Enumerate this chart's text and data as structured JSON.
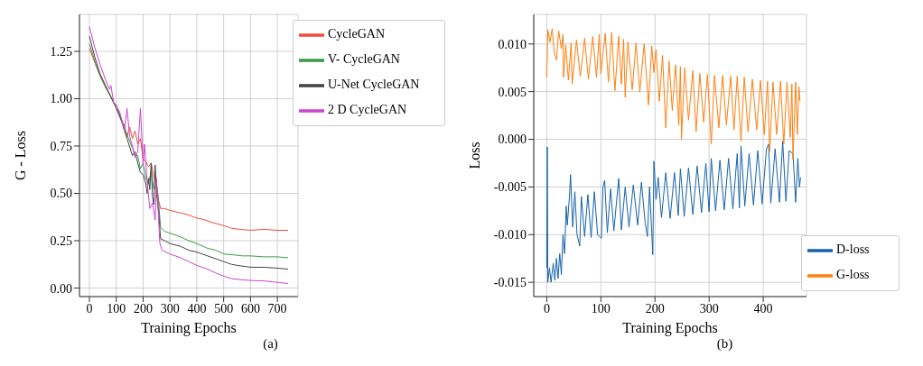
{
  "chart_data": [
    {
      "type": "line",
      "xlabel": "Training Epochs",
      "ylabel": "G - Loss",
      "annotations": [
        "(a)"
      ],
      "grid": true,
      "legend": "top right",
      "marker": "none",
      "line_style": "solid",
      "xlim": [
        -37,
        777
      ],
      "xticks": [
        0,
        100,
        200,
        300,
        400,
        500,
        600,
        700
      ],
      "ylim": [
        -0.045,
        1.445
      ],
      "yticks": [
        {
          "value": 0,
          "label": "0.00"
        },
        {
          "value": 0.25,
          "label": "0.25"
        },
        {
          "value": 0.5,
          "label": "0.50"
        },
        {
          "value": 0.75,
          "label": "0.75"
        },
        {
          "value": 1,
          "label": "1.00"
        },
        {
          "value": 1.25,
          "label": "1.25"
        }
      ],
      "series": [
        {
          "name": "CycleGAN",
          "color": "#f04a3a",
          "x": [
            0,
            20,
            40,
            60,
            80,
            100,
            110,
            120,
            130,
            140,
            150,
            160,
            170,
            180,
            190,
            200,
            210,
            220,
            230,
            240,
            250,
            258,
            265,
            280,
            300,
            330,
            360,
            400,
            430,
            460,
            500,
            530,
            560,
            600,
            650,
            700,
            740
          ],
          "values": [
            1.265,
            1.19,
            1.12,
            1.06,
            1.01,
            0.95,
            0.93,
            0.88,
            0.86,
            0.8,
            0.85,
            0.79,
            0.83,
            0.76,
            0.79,
            0.68,
            0.67,
            0.64,
            0.66,
            0.59,
            0.55,
            0.46,
            0.42,
            0.42,
            0.41,
            0.4,
            0.39,
            0.37,
            0.36,
            0.345,
            0.33,
            0.315,
            0.31,
            0.305,
            0.31,
            0.305,
            0.305
          ]
        },
        {
          "name": "V- CycleGAN",
          "color": "#3a9a4a",
          "x": [
            0,
            20,
            40,
            60,
            80,
            100,
            120,
            140,
            160,
            170,
            180,
            190,
            200,
            210,
            220,
            230,
            240,
            250,
            258,
            265,
            280,
            300,
            340,
            370,
            400,
            440,
            470,
            500,
            540,
            570,
            600,
            650,
            700,
            740
          ],
          "values": [
            1.29,
            1.2,
            1.12,
            1.06,
            1.01,
            0.95,
            0.89,
            0.81,
            0.74,
            0.7,
            0.7,
            0.63,
            0.66,
            0.58,
            0.55,
            0.62,
            0.52,
            0.55,
            0.45,
            0.32,
            0.3,
            0.29,
            0.27,
            0.25,
            0.235,
            0.21,
            0.2,
            0.18,
            0.175,
            0.17,
            0.17,
            0.165,
            0.165,
            0.16
          ]
        },
        {
          "name": "U-Net CycleGAN",
          "color": "#444444",
          "x": [
            0,
            20,
            40,
            60,
            80,
            100,
            120,
            140,
            160,
            170,
            180,
            190,
            200,
            210,
            215,
            220,
            225,
            230,
            235,
            240,
            245,
            250,
            258,
            265,
            280,
            300,
            340,
            370,
            400,
            440,
            470,
            500,
            530,
            550,
            600,
            650,
            700,
            740
          ],
          "values": [
            1.33,
            1.22,
            1.13,
            1.07,
            1.01,
            0.95,
            0.88,
            0.79,
            0.7,
            0.72,
            0.66,
            0.61,
            0.6,
            0.55,
            0.5,
            0.58,
            0.52,
            0.66,
            0.48,
            0.44,
            0.65,
            0.5,
            0.4,
            0.26,
            0.25,
            0.235,
            0.22,
            0.2,
            0.19,
            0.17,
            0.155,
            0.14,
            0.125,
            0.12,
            0.11,
            0.11,
            0.105,
            0.1
          ]
        },
        {
          "name": "2 D CycleGAN",
          "color": "#cc44cc",
          "x": [
            0,
            20,
            40,
            60,
            75,
            80,
            90,
            100,
            115,
            130,
            140,
            150,
            160,
            170,
            180,
            190,
            200,
            205,
            215,
            225,
            235,
            245,
            250,
            258,
            262,
            270,
            300,
            340,
            370,
            400,
            440,
            470,
            500,
            530,
            560,
            600,
            650,
            700,
            740
          ],
          "values": [
            1.38,
            1.27,
            1.18,
            1.1,
            1.05,
            1.07,
            0.98,
            0.97,
            0.92,
            0.83,
            0.95,
            0.8,
            0.75,
            0.69,
            0.72,
            0.95,
            0.65,
            0.76,
            0.56,
            0.42,
            0.45,
            0.36,
            0.58,
            0.36,
            0.24,
            0.2,
            0.18,
            0.16,
            0.14,
            0.12,
            0.1,
            0.08,
            0.063,
            0.05,
            0.045,
            0.04,
            0.038,
            0.03,
            0.024
          ]
        }
      ]
    },
    {
      "type": "line",
      "xlabel": "Training Epochs",
      "ylabel": "Loss",
      "annotations": [
        "(b)"
      ],
      "grid": true,
      "legend": "bottom right",
      "marker": "none",
      "line_style": "solid",
      "xlim": [
        -24,
        480
      ],
      "xticks": [
        0,
        100,
        200,
        300,
        400
      ],
      "ylim": [
        -0.0165,
        0.0131
      ],
      "yticks": [
        {
          "value": -0.015,
          "label": "-0.015"
        },
        {
          "value": -0.01,
          "label": "-0.010"
        },
        {
          "value": -0.005,
          "label": "-0.005"
        },
        {
          "value": 0,
          "label": "0.000"
        },
        {
          "value": 0.005,
          "label": "0.005"
        },
        {
          "value": 0.01,
          "label": "0.010"
        }
      ],
      "series": [
        {
          "name": "D-loss",
          "color": "#1663aa",
          "x": [
            0,
            1,
            2,
            5,
            8,
            12,
            15,
            18,
            21,
            24,
            27,
            30,
            33,
            36,
            38,
            42,
            44,
            48,
            52,
            56,
            61,
            64,
            70,
            76,
            82,
            88,
            94,
            101,
            104,
            107,
            112,
            118,
            124,
            133,
            138,
            145,
            152,
            160,
            168,
            175,
            182,
            186,
            190,
            196,
            198,
            202,
            206,
            212,
            220,
            228,
            236,
            243,
            247,
            254,
            262,
            270,
            278,
            286,
            294,
            300,
            304,
            312,
            320,
            328,
            336,
            344,
            352,
            356,
            359,
            366,
            374,
            382,
            390,
            398,
            406,
            410,
            414,
            422,
            430,
            436,
            442,
            448,
            455,
            460,
            464,
            467,
            469
          ],
          "values": [
            -0.0135,
            -0.0008,
            -0.015,
            -0.0135,
            -0.015,
            -0.013,
            -0.0148,
            -0.0125,
            -0.0146,
            -0.012,
            -0.0142,
            -0.01,
            -0.012,
            -0.007,
            -0.009,
            -0.006,
            -0.0037,
            -0.0092,
            -0.0055,
            -0.01,
            -0.0112,
            -0.006,
            -0.0102,
            -0.0058,
            -0.0103,
            -0.0055,
            -0.01,
            -0.0104,
            -0.005,
            -0.0043,
            -0.0098,
            -0.0052,
            -0.0096,
            -0.0041,
            -0.0095,
            -0.005,
            -0.0092,
            -0.0048,
            -0.009,
            -0.0045,
            -0.0088,
            -0.0102,
            -0.005,
            -0.0121,
            -0.0023,
            -0.0063,
            -0.004,
            -0.0082,
            -0.0035,
            -0.0083,
            -0.0035,
            -0.008,
            -0.0031,
            -0.0081,
            -0.003,
            -0.0079,
            -0.0028,
            -0.0077,
            -0.0025,
            -0.0076,
            -0.002,
            -0.0075,
            -0.0022,
            -0.0074,
            -0.002,
            -0.0073,
            -0.0015,
            -0.0072,
            -0.0007,
            -0.007,
            -0.0015,
            -0.0069,
            -0.0012,
            -0.0068,
            -0.001,
            -0.0005,
            -0.0067,
            -0.001,
            -0.0066,
            -0.0002,
            -0.0065,
            -0.0012,
            -0.0015,
            -0.0066,
            -0.002,
            -0.005,
            -0.004
          ]
        },
        {
          "name": "G-loss",
          "color": "#ff7f0e",
          "x": [
            0,
            2,
            6,
            10,
            14,
            18,
            22,
            27,
            30,
            31,
            35,
            40,
            45,
            47,
            55,
            62,
            70,
            77,
            85,
            92,
            97,
            100,
            108,
            114,
            120,
            126,
            133,
            138,
            142,
            145,
            150,
            158,
            165,
            172,
            180,
            188,
            194,
            198,
            202,
            208,
            214,
            220,
            226,
            232,
            238,
            244,
            247,
            249,
            255,
            262,
            270,
            276,
            283,
            290,
            297,
            304,
            310,
            318,
            325,
            332,
            340,
            346,
            352,
            359,
            365,
            372,
            380,
            388,
            395,
            402,
            408,
            412,
            418,
            425,
            432,
            438,
            444,
            450,
            453,
            455,
            460,
            463,
            466,
            468
          ],
          "values": [
            0.0065,
            0.0115,
            0.0102,
            0.0116,
            0.009,
            0.0083,
            0.0114,
            0.0095,
            0.011,
            0.0065,
            0.0099,
            0.0062,
            0.0101,
            0.0058,
            0.0104,
            0.0066,
            0.0106,
            0.0063,
            0.0108,
            0.0065,
            0.011,
            0.0069,
            0.0111,
            0.006,
            0.0112,
            0.0051,
            0.0108,
            0.0058,
            0.0105,
            0.0044,
            0.0102,
            0.0052,
            0.0101,
            0.005,
            0.01,
            0.0036,
            0.0098,
            0.007,
            0.0094,
            0.004,
            0.0088,
            0.0012,
            0.0082,
            0.003,
            0.0078,
            0.0015,
            0.0076,
            0,
            0.0075,
            0.002,
            0.0072,
            0.0008,
            0.0069,
            0.0018,
            0.0068,
            -0.0005,
            0.0067,
            0.0012,
            0.0067,
            0.0015,
            0.0066,
            0.001,
            0.0066,
            -0.0002,
            0.0065,
            0.0008,
            0.0063,
            0.001,
            0.0062,
            0.0005,
            0.0061,
            -0.0013,
            0.006,
            0.0005,
            0.0061,
            -0.0005,
            0.006,
            0.0002,
            0.0058,
            -0.0021,
            0.006,
            0.0005,
            0.0055,
            0.004
          ]
        }
      ]
    }
  ]
}
